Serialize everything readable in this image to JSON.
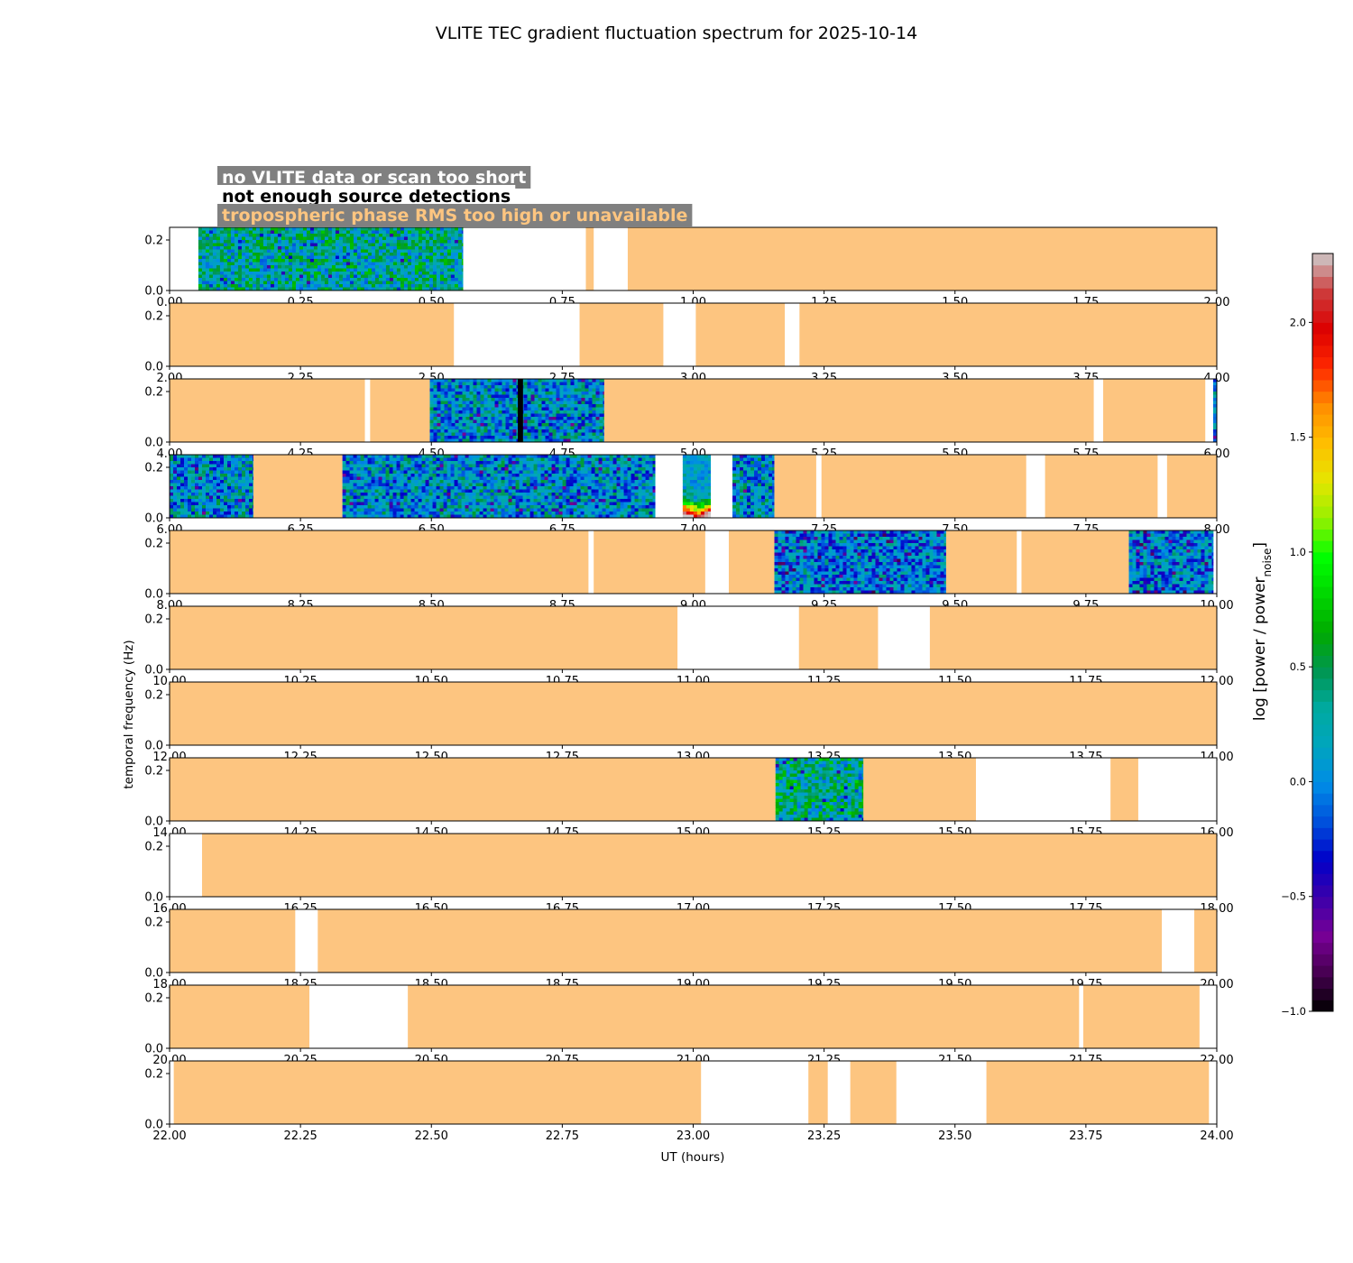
{
  "chart_data": {
    "type": "heatmap",
    "title": "VLITE TEC gradient fluctuation spectrum for 2025-10-14",
    "xlabel": "UT (hours)",
    "ylabel": "temporal frequency (Hz)",
    "ylim": [
      0,
      0.25
    ],
    "ytick_labels": [
      "0.0",
      "0.2"
    ],
    "colorbar": {
      "label_main": "log [power / power",
      "label_sub": "noise",
      "label_end": "]",
      "range": [
        -1.0,
        2.3
      ],
      "ticks": [
        -1.0,
        -0.5,
        0.0,
        0.5,
        1.0,
        1.5,
        2.0
      ],
      "tick_labels": [
        "−1.0",
        "−0.5",
        "0.0",
        "0.5",
        "1.0",
        "1.5",
        "2.0"
      ]
    },
    "legend": [
      {
        "text": "no VLITE data or scan too short",
        "text_color": "#ffffff",
        "box_color": "#808080"
      },
      {
        "text": "not enough source detections",
        "text_color": "#000000",
        "box_color": "#ffffff"
      },
      {
        "text": "tropospheric phase RMS too high or unavailable",
        "text_color": "#fdc580",
        "box_color": "#808080"
      }
    ],
    "colors": {
      "tropo_flag": "#fdc580",
      "detection_flag": "#000000"
    },
    "panels": [
      {
        "xlim": [
          0,
          2
        ],
        "xtick_labels": [
          "0.00",
          "0.25",
          "0.50",
          "0.75",
          "1.00",
          "1.25",
          "1.50",
          "1.75",
          "2.00"
        ],
        "tropo": [
          [
            0.795,
            0.81
          ],
          [
            0.875,
            2.0
          ]
        ],
        "spectrum": [
          [
            0.055,
            0.56,
            0.3
          ]
        ],
        "black": []
      },
      {
        "xlim": [
          2,
          4
        ],
        "xtick_labels": [
          "2.00",
          "2.25",
          "2.50",
          "2.75",
          "3.00",
          "3.25",
          "3.50",
          "3.75",
          "4.00"
        ],
        "tropo": [
          [
            2.0,
            2.543
          ],
          [
            2.783,
            2.943
          ],
          [
            3.005,
            3.175
          ],
          [
            3.203,
            4.0
          ]
        ],
        "spectrum": [],
        "black": []
      },
      {
        "xlim": [
          4,
          6
        ],
        "xtick_labels": [
          "4.00",
          "4.25",
          "4.50",
          "4.75",
          "5.00",
          "5.25",
          "5.50",
          "5.75",
          "6.00"
        ],
        "tropo": [
          [
            4.0,
            4.373
          ],
          [
            4.383,
            4.497
          ],
          [
            4.83,
            5.765
          ],
          [
            5.783,
            5.978
          ]
        ],
        "spectrum": [
          [
            4.497,
            4.83,
            0.1
          ],
          [
            5.993,
            6.0,
            0.0
          ]
        ],
        "black": [
          [
            4.665,
            4.675
          ]
        ]
      },
      {
        "xlim": [
          6,
          8
        ],
        "xtick_labels": [
          "6.00",
          "6.25",
          "6.50",
          "6.75",
          "7.00",
          "7.25",
          "7.50",
          "7.75",
          "8.00"
        ],
        "tropo": [
          [
            6.16,
            6.33
          ],
          [
            7.155,
            7.235
          ],
          [
            7.245,
            7.636
          ],
          [
            7.672,
            7.887
          ],
          [
            7.905,
            8.0
          ]
        ],
        "spectrum": [
          [
            6.0,
            6.16,
            0.1
          ],
          [
            6.33,
            6.927,
            0.1
          ],
          [
            7.075,
            7.155,
            0.1
          ]
        ],
        "black": [],
        "hot": [
          [
            6.98,
            7.033
          ]
        ]
      },
      {
        "xlim": [
          8,
          10
        ],
        "xtick_labels": [
          "8.00",
          "8.25",
          "8.50",
          "8.75",
          "9.00",
          "9.25",
          "9.50",
          "9.75",
          "10.00"
        ],
        "tropo": [
          [
            8.0,
            8.8
          ],
          [
            8.81,
            9.023
          ],
          [
            9.068,
            9.155
          ],
          [
            9.483,
            9.618
          ],
          [
            9.627,
            9.832
          ]
        ],
        "spectrum": [
          [
            9.155,
            9.483,
            0.0
          ],
          [
            9.832,
            9.993,
            0.0
          ]
        ],
        "black": []
      },
      {
        "xlim": [
          10,
          12
        ],
        "xtick_labels": [
          "10.00",
          "10.25",
          "10.50",
          "10.75",
          "11.00",
          "11.25",
          "11.50",
          "11.75",
          "12.00"
        ],
        "tropo": [
          [
            10.0,
            10.97
          ],
          [
            11.202,
            11.353
          ],
          [
            11.452,
            12.0
          ]
        ],
        "spectrum": [],
        "black": []
      },
      {
        "xlim": [
          12,
          14
        ],
        "xtick_labels": [
          "12.00",
          "12.25",
          "12.50",
          "12.75",
          "13.00",
          "13.25",
          "13.50",
          "13.75",
          "14.00"
        ],
        "tropo": [
          [
            12.0,
            14.0
          ]
        ],
        "spectrum": [],
        "black": []
      },
      {
        "xlim": [
          14,
          16
        ],
        "xtick_labels": [
          "14.00",
          "14.25",
          "14.50",
          "14.75",
          "15.00",
          "15.25",
          "15.50",
          "15.75",
          "16.00"
        ],
        "tropo": [
          [
            14.0,
            15.157
          ],
          [
            15.325,
            15.54
          ],
          [
            15.797,
            15.85
          ]
        ],
        "spectrum": [
          [
            15.157,
            15.325,
            0.35
          ]
        ],
        "black": []
      },
      {
        "xlim": [
          16,
          18
        ],
        "xtick_labels": [
          "16.00",
          "16.25",
          "16.50",
          "16.75",
          "17.00",
          "17.25",
          "17.50",
          "17.75",
          "18.00"
        ],
        "tropo": [
          [
            16.062,
            18.0
          ]
        ],
        "spectrum": [],
        "black": []
      },
      {
        "xlim": [
          18,
          20
        ],
        "xtick_labels": [
          "18.00",
          "18.25",
          "18.50",
          "18.75",
          "19.00",
          "19.25",
          "19.50",
          "19.75",
          "20.00"
        ],
        "tropo": [
          [
            18.0,
            18.24
          ],
          [
            18.283,
            19.895
          ],
          [
            19.957,
            20.0
          ]
        ],
        "spectrum": [],
        "black": []
      },
      {
        "xlim": [
          20,
          22
        ],
        "xtick_labels": [
          "20.00",
          "20.25",
          "20.50",
          "20.75",
          "21.00",
          "21.25",
          "21.50",
          "21.75",
          "22.00"
        ],
        "tropo": [
          [
            20.0,
            20.267
          ],
          [
            20.455,
            21.737
          ],
          [
            21.745,
            21.967
          ]
        ],
        "spectrum": [],
        "black": []
      },
      {
        "xlim": [
          22,
          24
        ],
        "xtick_labels": [
          "22.00",
          "22.25",
          "22.50",
          "22.75",
          "23.00",
          "23.25",
          "23.50",
          "23.75",
          "24.00"
        ],
        "tropo": [
          [
            22.008,
            23.015
          ],
          [
            23.22,
            23.257
          ],
          [
            23.3,
            23.388
          ],
          [
            23.56,
            23.985
          ]
        ],
        "spectrum": [],
        "black": []
      }
    ]
  }
}
